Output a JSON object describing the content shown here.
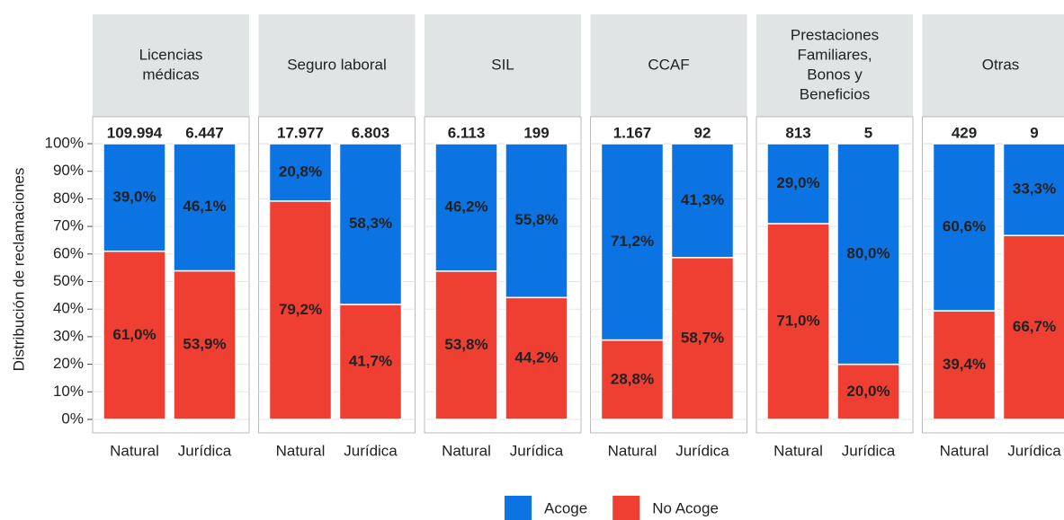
{
  "chart_data": {
    "type": "bar",
    "stacked": true,
    "ylabel": "Distribución de reclamaciones",
    "ylim": [
      0,
      100
    ],
    "yticks": [
      {
        "value": 0,
        "label": "0%"
      },
      {
        "value": 10,
        "label": "10%"
      },
      {
        "value": 20,
        "label": "20%"
      },
      {
        "value": 30,
        "label": "30%"
      },
      {
        "value": 40,
        "label": "40%"
      },
      {
        "value": 50,
        "label": "50%"
      },
      {
        "value": 60,
        "label": "60%"
      },
      {
        "value": 70,
        "label": "70%"
      },
      {
        "value": 80,
        "label": "80%"
      },
      {
        "value": 90,
        "label": "90%"
      },
      {
        "value": 100,
        "label": "100%"
      }
    ],
    "grid": true,
    "categories": [
      "Natural",
      "Jurídica"
    ],
    "facets": [
      [
        "Licencias",
        "médicas"
      ],
      [
        "Seguro laboral"
      ],
      [
        "SIL"
      ],
      [
        "CCAF"
      ],
      [
        "Prestaciones",
        "Familiares,",
        "Bonos y",
        "Beneficios"
      ],
      [
        "Otras"
      ]
    ],
    "totals": [
      [
        "109.994",
        "6.447"
      ],
      [
        "17.977",
        "6.803"
      ],
      [
        "6.113",
        "199"
      ],
      [
        "1.167",
        "92"
      ],
      [
        "813",
        "5"
      ],
      [
        "429",
        "9"
      ]
    ],
    "series": [
      {
        "name": "Acoge",
        "color": "#0b73e2",
        "values": [
          [
            39.0,
            46.1
          ],
          [
            20.8,
            58.3
          ],
          [
            46.2,
            55.8
          ],
          [
            71.2,
            41.3
          ],
          [
            29.0,
            80.0
          ],
          [
            60.6,
            33.3
          ]
        ],
        "value_labels": [
          [
            "39,0%",
            "46,1%"
          ],
          [
            "20,8%",
            "58,3%"
          ],
          [
            "46,2%",
            "55,8%"
          ],
          [
            "71,2%",
            "41,3%"
          ],
          [
            "29,0%",
            "80,0%"
          ],
          [
            "60,6%",
            "33,3%"
          ]
        ]
      },
      {
        "name": "No Acoge",
        "color": "#ef3e32",
        "values": [
          [
            61.0,
            53.9
          ],
          [
            79.2,
            41.7
          ],
          [
            53.8,
            44.2
          ],
          [
            28.8,
            58.7
          ],
          [
            71.0,
            20.0
          ],
          [
            39.4,
            66.7
          ]
        ],
        "value_labels": [
          [
            "61,0%",
            "53,9%"
          ],
          [
            "79,2%",
            "41,7%"
          ],
          [
            "53,8%",
            "44,2%"
          ],
          [
            "28,8%",
            "58,7%"
          ],
          [
            "71,0%",
            "20,0%"
          ],
          [
            "39,4%",
            "66,7%"
          ]
        ]
      }
    ]
  }
}
